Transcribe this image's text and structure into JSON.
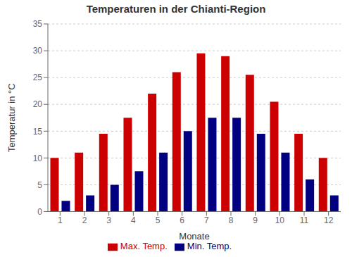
{
  "chart_data": {
    "type": "bar",
    "title": "Temperaturen in der Chianti-Region",
    "x_label": "Monate",
    "y_label": "Temperatur in °C",
    "categories": [
      "1",
      "2",
      "3",
      "4",
      "5",
      "6",
      "7",
      "8",
      "9",
      "10",
      "11",
      "12"
    ],
    "series": [
      {
        "name": "Max. Temp.",
        "color": "#CC0000",
        "values": [
          10,
          11,
          14.5,
          17.5,
          22,
          26,
          29.5,
          29,
          25.5,
          20.5,
          14.5,
          10
        ]
      },
      {
        "name": "Min. Temp.",
        "color": "#000080",
        "values": [
          2,
          3,
          5,
          7.5,
          11,
          15,
          17.5,
          17.5,
          14.5,
          11,
          6,
          3
        ]
      }
    ],
    "ylim": [
      0,
      35
    ],
    "yticks": [
      0,
      5,
      10,
      15,
      20,
      25,
      30,
      35
    ],
    "grid": true,
    "legend": "bottom"
  }
}
